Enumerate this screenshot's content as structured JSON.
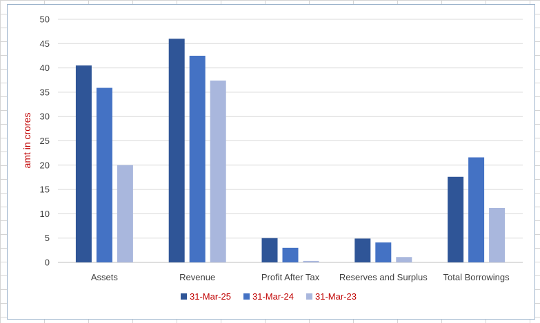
{
  "chart_data": {
    "type": "bar",
    "title": "",
    "xlabel": "",
    "ylabel": "amt in crores",
    "ylim": [
      0,
      50
    ],
    "yticks": [
      0,
      5,
      10,
      15,
      20,
      25,
      30,
      35,
      40,
      45,
      50
    ],
    "grid": true,
    "legend_position": "bottom",
    "categories": [
      "Assets",
      "Revenue",
      "Profit After Tax",
      "Reserves and Surplus",
      "Total Borrowings"
    ],
    "series": [
      {
        "name": "31-Mar-25",
        "color": "#2f5597",
        "values": [
          40.5,
          46.0,
          5.0,
          4.9,
          17.6
        ]
      },
      {
        "name": "31-Mar-24",
        "color": "#4472c4",
        "values": [
          35.9,
          42.5,
          3.0,
          4.1,
          21.6
        ]
      },
      {
        "name": "31-Mar-23",
        "color": "#a9b7dd",
        "values": [
          20.0,
          37.4,
          0.3,
          1.1,
          11.2
        ]
      }
    ]
  }
}
